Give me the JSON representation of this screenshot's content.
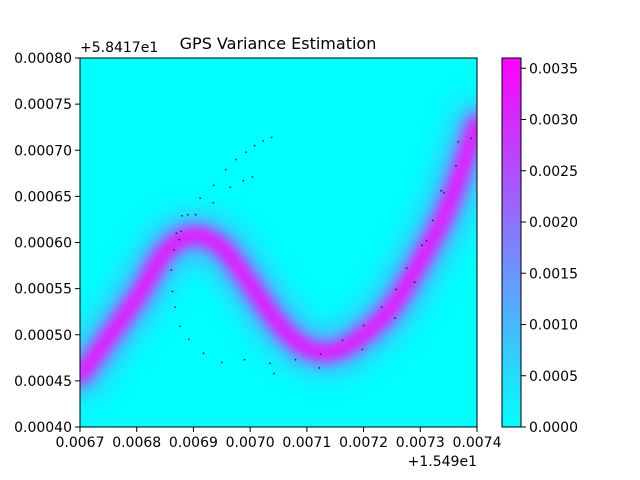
{
  "chart_data": {
    "type": "heatmap",
    "title": "GPS Variance Estimation",
    "xlabel": "",
    "ylabel": "",
    "x_offset_label": "+1.549e1",
    "y_offset_label": "+5.8417e1",
    "xlim": [
      0.0067,
      0.0074
    ],
    "ylim": [
      0.0004,
      0.0008
    ],
    "x_ticks": [
      "0.0067",
      "0.0068",
      "0.0069",
      "0.0070",
      "0.0071",
      "0.0072",
      "0.0073",
      "0.0074"
    ],
    "y_ticks": [
      "0.00040",
      "0.00045",
      "0.00050",
      "0.00055",
      "0.00060",
      "0.00065",
      "0.00070",
      "0.00075",
      "0.00080"
    ],
    "colorbar": {
      "colormap": "cool",
      "range": [
        0,
        0.0036
      ],
      "colors": [
        "#00ffff",
        "#ff00ff"
      ],
      "ticks": [
        "0.0000",
        "0.0005",
        "0.0010",
        "0.0015",
        "0.0020",
        "0.0025",
        "0.0030",
        "0.0035"
      ]
    },
    "variance_curve": {
      "peak_value": 0.0036,
      "points": [
        [
          0.0067,
          0.000455
        ],
        [
          0.0068,
          0.00054
        ],
        [
          0.00685,
          0.00059
        ],
        [
          0.0069,
          0.000608
        ],
        [
          0.00695,
          0.000595
        ],
        [
          0.007,
          0.000555
        ],
        [
          0.00705,
          0.000512
        ],
        [
          0.0071,
          0.000485
        ],
        [
          0.00715,
          0.000482
        ],
        [
          0.0072,
          0.0005
        ],
        [
          0.00725,
          0.00053
        ],
        [
          0.0073,
          0.00058
        ],
        [
          0.00735,
          0.00064
        ],
        [
          0.0074,
          0.00073
        ]
      ]
    },
    "gps_points": [
      [
        0.007038,
        0.000714
      ],
      [
        0.007023,
        0.00071
      ],
      [
        0.007008,
        0.000705
      ],
      [
        0.006993,
        0.000698
      ],
      [
        0.006975,
        0.00069
      ],
      [
        0.006957,
        0.000679
      ],
      [
        0.006936,
        0.000662
      ],
      [
        0.006912,
        0.000648
      ],
      [
        0.00689,
        0.00063
      ],
      [
        0.006878,
        0.000612
      ],
      [
        0.006866,
        0.000592
      ],
      [
        0.006861,
        0.00057
      ],
      [
        0.006863,
        0.000547
      ],
      [
        0.006868,
        0.00053
      ],
      [
        0.006876,
        0.000509
      ],
      [
        0.006892,
        0.000495
      ],
      [
        0.006918,
        0.00048
      ],
      [
        0.00695,
        0.00047
      ],
      [
        0.00699,
        0.000473
      ],
      [
        0.007035,
        0.000469
      ],
      [
        0.007042,
        0.000458
      ],
      [
        0.00708,
        0.000473
      ],
      [
        0.007122,
        0.000464
      ],
      [
        0.007124,
        0.000479
      ],
      [
        0.007163,
        0.000494
      ],
      [
        0.007198,
        0.000484
      ],
      [
        0.0072,
        0.00051
      ],
      [
        0.007232,
        0.00053
      ],
      [
        0.007255,
        0.000518
      ],
      [
        0.007257,
        0.000549
      ],
      [
        0.007276,
        0.000572
      ],
      [
        0.00729,
        0.000557
      ],
      [
        0.007303,
        0.000597
      ],
      [
        0.007311,
        0.000602
      ],
      [
        0.007322,
        0.000624
      ],
      [
        0.007337,
        0.000656
      ],
      [
        0.007342,
        0.000654
      ],
      [
        0.007363,
        0.000683
      ],
      [
        0.007367,
        0.000709
      ],
      [
        0.00739,
        0.000713
      ],
      [
        0.00688,
        0.000629
      ],
      [
        0.006904,
        0.00063
      ],
      [
        0.006935,
        0.000643
      ],
      [
        0.006965,
        0.00066
      ],
      [
        0.006988,
        0.000667
      ],
      [
        0.007004,
        0.000671
      ],
      [
        0.006875,
        0.000603
      ],
      [
        0.00687,
        0.00061
      ]
    ]
  }
}
